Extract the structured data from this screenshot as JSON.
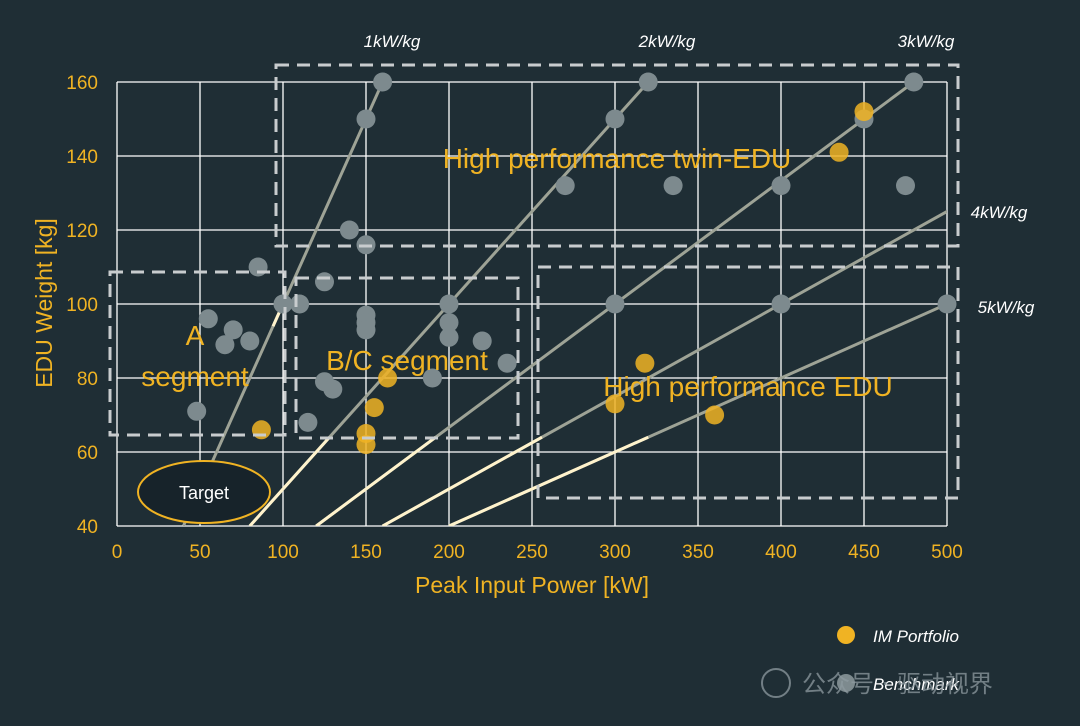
{
  "chart_data": {
    "type": "scatter",
    "xlabel": "Peak Input Power [kW]",
    "ylabel": "EDU Weight [kg]",
    "xlim": [
      0,
      500
    ],
    "ylim": [
      40,
      160
    ],
    "x_ticks": [
      0,
      50,
      100,
      150,
      200,
      250,
      300,
      350,
      400,
      450,
      500
    ],
    "y_ticks": [
      40,
      60,
      80,
      100,
      120,
      140,
      160
    ],
    "grid": true,
    "series": [
      {
        "name": "IM Portfolio",
        "color": "#f0b323",
        "points": [
          [
            87,
            66
          ],
          [
            150,
            62
          ],
          [
            150,
            65
          ],
          [
            155,
            72
          ],
          [
            163,
            80
          ],
          [
            300,
            73
          ],
          [
            318,
            84
          ],
          [
            360,
            70
          ],
          [
            435,
            141
          ],
          [
            450,
            152
          ]
        ]
      },
      {
        "name": "Benchmark",
        "color": "#7d8a8e",
        "points": [
          [
            48,
            71
          ],
          [
            55,
            96
          ],
          [
            65,
            89
          ],
          [
            70,
            93
          ],
          [
            80,
            90
          ],
          [
            85,
            110
          ],
          [
            100,
            100
          ],
          [
            110,
            100
          ],
          [
            115,
            68
          ],
          [
            125,
            106
          ],
          [
            125,
            79
          ],
          [
            130,
            77
          ],
          [
            140,
            120
          ],
          [
            150,
            116
          ],
          [
            150,
            150
          ],
          [
            150,
            97
          ],
          [
            150,
            95
          ],
          [
            150,
            93
          ],
          [
            160,
            160
          ],
          [
            190,
            80
          ],
          [
            200,
            100
          ],
          [
            200,
            95
          ],
          [
            200,
            91
          ],
          [
            220,
            90
          ],
          [
            235,
            84
          ],
          [
            270,
            132
          ],
          [
            300,
            150
          ],
          [
            300,
            100
          ],
          [
            320,
            160
          ],
          [
            335,
            132
          ],
          [
            400,
            132
          ],
          [
            400,
            100
          ],
          [
            450,
            150
          ],
          [
            475,
            132
          ],
          [
            480,
            160
          ],
          [
            500,
            100
          ]
        ]
      }
    ],
    "power_weight_lines": [
      {
        "label": "1kW/kg",
        "slope": 1
      },
      {
        "label": "2kW/kg",
        "slope": 2
      },
      {
        "label": "3kW/kg",
        "slope": 3
      },
      {
        "label": "4kW/kg",
        "slope": 4
      },
      {
        "label": "5kW/kg",
        "slope": 5
      }
    ],
    "regions": [
      {
        "label_lines": [
          "A",
          "segment"
        ]
      },
      {
        "label_lines": [
          "B/C segment"
        ]
      },
      {
        "label_lines": [
          "High performance twin-EDU"
        ]
      },
      {
        "label_lines": [
          "High performance EDU"
        ]
      }
    ],
    "target_label": "Target",
    "legend": {
      "placement": "bottom-right",
      "entries": [
        "IM Portfolio",
        "Benchmark"
      ]
    },
    "colors": {
      "background": "#1f2e35",
      "accent": "#f0b323",
      "grid": "#ffffff",
      "benchmark": "#7d8a8e",
      "ratio_line": "#9ea396",
      "ratio_line_highlight": "#fff3cc",
      "region_border": "#c8ccce"
    }
  },
  "watermark": "公众号 · 驱动视界"
}
